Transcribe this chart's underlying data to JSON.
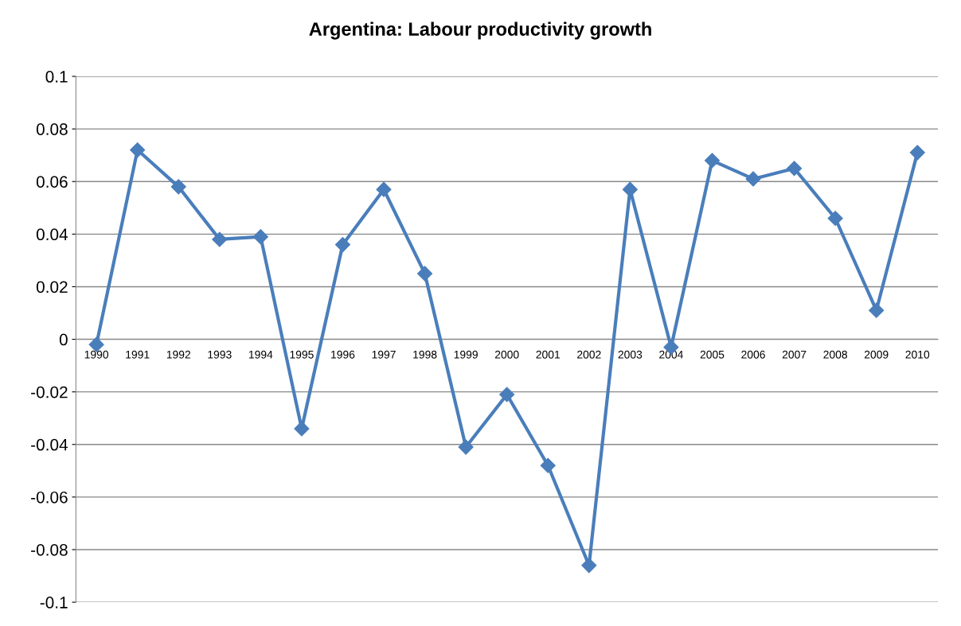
{
  "chart_data": {
    "type": "line",
    "title": "Argentina: Labour productivity growth",
    "categories": [
      "1990",
      "1991",
      "1992",
      "1993",
      "1994",
      "1995",
      "1996",
      "1997",
      "1998",
      "1999",
      "2000",
      "2001",
      "2002",
      "2003",
      "2004",
      "2005",
      "2006",
      "2007",
      "2008",
      "2009",
      "2010"
    ],
    "series": [
      {
        "color": "#4a7ebb",
        "values": [
          -0.002,
          0.072,
          0.058,
          0.038,
          0.039,
          -0.034,
          0.036,
          0.057,
          0.025,
          -0.041,
          -0.021,
          -0.048,
          -0.086,
          0.057,
          -0.003,
          0.068,
          0.061,
          0.065,
          0.046,
          0.011,
          0.071
        ]
      }
    ],
    "ylim": [
      -0.1,
      0.1
    ],
    "yticks": [
      -0.1,
      -0.08,
      -0.06,
      -0.04,
      -0.02,
      0,
      0.02,
      0.04,
      0.06,
      0.08,
      0.1
    ],
    "grid": "y",
    "marker": "diamond",
    "line_style": "solid",
    "legend": false
  }
}
